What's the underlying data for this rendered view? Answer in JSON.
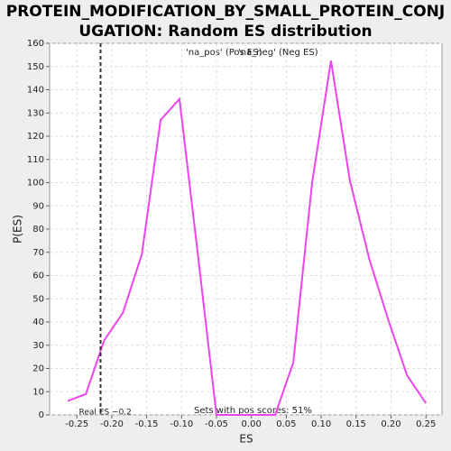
{
  "chart_data": {
    "type": "line",
    "title": "PROTEIN_MODIFICATION_BY_SMALL_PROTEIN_CONJUGATION: Random ES distribution",
    "x_label": "ES",
    "y_label": "P(ES)",
    "legend": [
      "'na_pos' (Pos ES)",
      "'na_neg' (Neg ES)"
    ],
    "legend_colors": [
      "#e04040",
      "#4040e0"
    ],
    "real_es": -0.216,
    "real_es_label": "Real ES −0.2",
    "annotation": "Sets with pos scores: 51%",
    "series": [
      {
        "color": "#ee44ee",
        "x": [
          -0.263,
          -0.237,
          -0.211,
          -0.184,
          -0.157,
          -0.13,
          -0.103,
          -0.077,
          -0.05,
          0.034,
          0.06,
          0.087,
          0.114,
          0.141,
          0.169,
          0.196,
          0.223,
          0.25
        ],
        "values": [
          6,
          9,
          32,
          44,
          69,
          127,
          136,
          70,
          0,
          0,
          22.5,
          100,
          152.5,
          101,
          67,
          41,
          17,
          5
        ]
      }
    ],
    "xlim": [
      -0.289,
      0.273
    ],
    "ylim": [
      0,
      160
    ],
    "xticks": [
      -0.25,
      {
        "value": -0.2,
        "label": "-0.20"
      },
      -0.15,
      {
        "value": -0.1,
        "label": "-0.10"
      },
      -0.05,
      {
        "value": 0,
        "label": "0.00"
      },
      0.05,
      {
        "value": 0.1,
        "label": "0.10"
      },
      0.15,
      {
        "value": 0.2,
        "label": "0.20"
      },
      0.25
    ],
    "yticks": [
      0,
      10,
      20,
      30,
      40,
      50,
      60,
      70,
      80,
      90,
      100,
      110,
      120,
      130,
      140,
      150,
      160
    ],
    "grid": true
  }
}
